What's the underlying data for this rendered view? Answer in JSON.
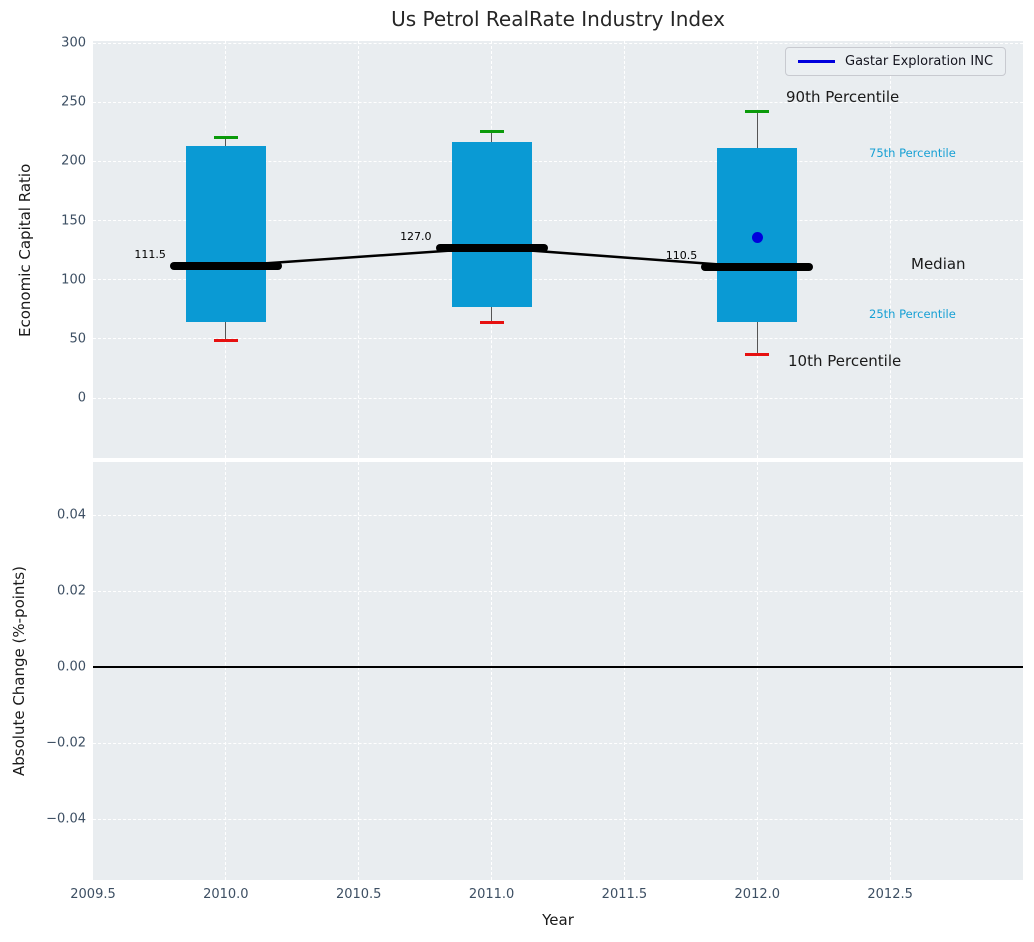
{
  "title": "Us Petrol RealRate Industry Index",
  "legend": {
    "label": "Gastar Exploration INC"
  },
  "annotations": {
    "p90": "90th Percentile",
    "p75": "75th Percentile",
    "median": "Median",
    "p25": "25th Percentile",
    "p10": "10th Percentile"
  },
  "colors": {
    "box": "#0a9ad4",
    "p90_cap": "#0a9a0a",
    "p10_cap": "#e61010",
    "median_line": "#000000",
    "company": "#0000dd",
    "plot_bg": "#e9edf0",
    "grid": "#ffffff",
    "tick_text": "#3d4f63",
    "percentile_label": "#17a0d4"
  },
  "chart_data": [
    {
      "type": "box-whisker",
      "title": "Us Petrol RealRate Industry Index",
      "xlabel": "Year",
      "ylabel": "Economic Capital Ratio",
      "xlim": [
        2009.5,
        2013.0
      ],
      "ylim": [
        -50.7,
        301.7
      ],
      "grid": true,
      "legend_position": "upper right",
      "series_name": "Gastar Exploration INC",
      "xticks": [
        {
          "v": 2009.5,
          "label": "2009.5"
        },
        {
          "v": 2010.0,
          "label": "2010.0"
        },
        {
          "v": 2010.5,
          "label": "2010.5"
        },
        {
          "v": 2011.0,
          "label": "2011.0"
        },
        {
          "v": 2011.5,
          "label": "2011.5"
        },
        {
          "v": 2012.0,
          "label": "2012.0"
        },
        {
          "v": 2012.5,
          "label": "2012.5"
        }
      ],
      "yticks": [
        {
          "v": 300,
          "label": "300"
        },
        {
          "v": 250,
          "label": "250"
        },
        {
          "v": 200,
          "label": "200"
        },
        {
          "v": 150,
          "label": "150"
        },
        {
          "v": 100,
          "label": "100"
        },
        {
          "v": 50,
          "label": "50"
        },
        {
          "v": 0,
          "label": "0"
        }
      ],
      "years": [
        2010,
        2011,
        2012
      ],
      "p90": [
        220,
        225,
        242
      ],
      "p75": [
        213,
        216,
        211
      ],
      "median": [
        111.5,
        127.0,
        110.5
      ],
      "median_labels": [
        "111.5",
        "127.0",
        "110.5"
      ],
      "p25": [
        64,
        77,
        64
      ],
      "p10": [
        49,
        64,
        37
      ],
      "company_point": {
        "x": 2012,
        "y": 136
      }
    },
    {
      "type": "line",
      "xlabel": "Year",
      "ylabel": "Absolute Change (%-points)",
      "xlim": [
        2009.5,
        2013.0
      ],
      "ylim": [
        -0.056,
        0.054
      ],
      "grid": true,
      "yticks": [
        {
          "v": 0.04,
          "label": "0.04"
        },
        {
          "v": 0.02,
          "label": "0.02"
        },
        {
          "v": 0.0,
          "label": "0.00"
        },
        {
          "v": -0.02,
          "label": "−0.02"
        },
        {
          "v": -0.04,
          "label": "−0.04"
        }
      ],
      "zero_line": 0.0
    }
  ]
}
